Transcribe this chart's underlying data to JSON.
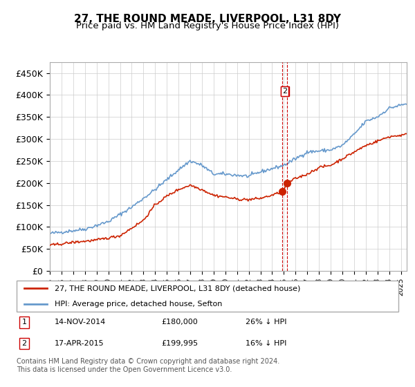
{
  "title": "27, THE ROUND MEADE, LIVERPOOL, L31 8DY",
  "subtitle": "Price paid vs. HM Land Registry's House Price Index (HPI)",
  "ylim": [
    0,
    475000
  ],
  "yticks": [
    0,
    50000,
    100000,
    150000,
    200000,
    250000,
    300000,
    350000,
    400000,
    450000
  ],
  "ylabel_format": "£{0}K",
  "hpi_color": "#6699cc",
  "price_color": "#cc2200",
  "marker_color_1": "#cc2200",
  "marker_color_2": "#cc2200",
  "vline_color": "#cc0000",
  "annotation_box_color": "#cc0000",
  "legend_label_red": "27, THE ROUND MEADE, LIVERPOOL, L31 8DY (detached house)",
  "legend_label_blue": "HPI: Average price, detached house, Sefton",
  "table_rows": [
    {
      "num": "1",
      "date": "14-NOV-2014",
      "price": "£180,000",
      "hpi": "26% ↓ HPI"
    },
    {
      "num": "2",
      "date": "17-APR-2015",
      "price": "£199,995",
      "hpi": "16% ↓ HPI"
    }
  ],
  "footnote": "Contains HM Land Registry data © Crown copyright and database right 2024.\nThis data is licensed under the Open Government Licence v3.0.",
  "transaction_1_year": 2014.87,
  "transaction_2_year": 2015.29,
  "transaction_1_price": 180000,
  "transaction_2_price": 199995,
  "xmin": 1995,
  "xmax": 2025.5
}
